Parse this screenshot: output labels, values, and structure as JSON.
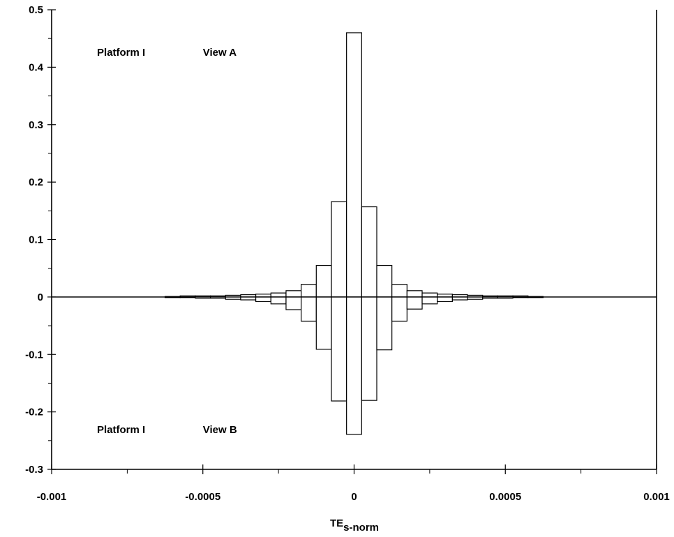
{
  "chart_data": {
    "type": "bar",
    "title": "",
    "xlabel": "TE",
    "xlabel_subscript": "s-norm",
    "ylabel": "",
    "xlim": [
      -0.001,
      0.001
    ],
    "ylim": [
      -0.3,
      0.5
    ],
    "grid": false,
    "x_ticks": [
      {
        "value": -0.001,
        "label": "-0.001"
      },
      {
        "value": -0.0005,
        "label": "-0.0005"
      },
      {
        "value": 0,
        "label": "0"
      },
      {
        "value": 0.0005,
        "label": "0.0005"
      },
      {
        "value": 0.001,
        "label": "0.001"
      }
    ],
    "y_ticks": [
      {
        "value": 0.5,
        "label": "0.5"
      },
      {
        "value": 0.4,
        "label": "0.4"
      },
      {
        "value": 0.3,
        "label": "0.3"
      },
      {
        "value": 0.2,
        "label": "0.2"
      },
      {
        "value": 0.1,
        "label": "0.1"
      },
      {
        "value": 0,
        "label": "0"
      },
      {
        "value": -0.1,
        "label": "-0.1"
      },
      {
        "value": -0.2,
        "label": "-0.2"
      },
      {
        "value": -0.3,
        "label": "-0.3"
      }
    ],
    "bin_width": 5e-05,
    "series": [
      {
        "name": "Platform I View A",
        "bin_centers": [
          -0.0006,
          -0.00055,
          -0.0005,
          -0.00045,
          -0.0004,
          -0.00035,
          -0.0003,
          -0.00025,
          -0.0002,
          -0.00015,
          -0.0001,
          -5e-05,
          0,
          5e-05,
          0.0001,
          0.00015,
          0.0002,
          0.00025,
          0.0003,
          0.00035,
          0.0004,
          0.00045,
          0.0005,
          0.00055,
          0.0006
        ],
        "values": [
          0.001,
          0.002,
          0.002,
          0.002,
          0.003,
          0.004,
          0.005,
          0.007,
          0.011,
          0.022,
          0.055,
          0.166,
          0.46,
          0.157,
          0.055,
          0.022,
          0.011,
          0.007,
          0.005,
          0.004,
          0.003,
          0.002,
          0.002,
          0.002,
          0.001
        ]
      },
      {
        "name": "Platform I View B",
        "bin_centers": [
          -0.0006,
          -0.00055,
          -0.0005,
          -0.00045,
          -0.0004,
          -0.00035,
          -0.0003,
          -0.00025,
          -0.0002,
          -0.00015,
          -0.0001,
          -5e-05,
          0,
          5e-05,
          0.0001,
          0.00015,
          0.0002,
          0.00025,
          0.0003,
          0.00035,
          0.0004,
          0.00045,
          0.0005,
          0.00055,
          0.0006
        ],
        "values": [
          -0.001,
          -0.001,
          -0.002,
          -0.002,
          -0.004,
          -0.005,
          -0.008,
          -0.012,
          -0.022,
          -0.042,
          -0.091,
          -0.181,
          -0.239,
          -0.18,
          -0.092,
          -0.042,
          -0.021,
          -0.012,
          -0.008,
          -0.005,
          -0.004,
          -0.002,
          -0.002,
          -0.001,
          -0.001
        ]
      }
    ],
    "annotations": [
      {
        "text": "Platform I",
        "x": -0.00085,
        "y": 0.42
      },
      {
        "text": "View A",
        "x": -0.0005,
        "y": 0.42
      },
      {
        "text": "Platform I",
        "x": -0.00085,
        "y": -0.237
      },
      {
        "text": "View B",
        "x": -0.0005,
        "y": -0.237
      }
    ]
  }
}
